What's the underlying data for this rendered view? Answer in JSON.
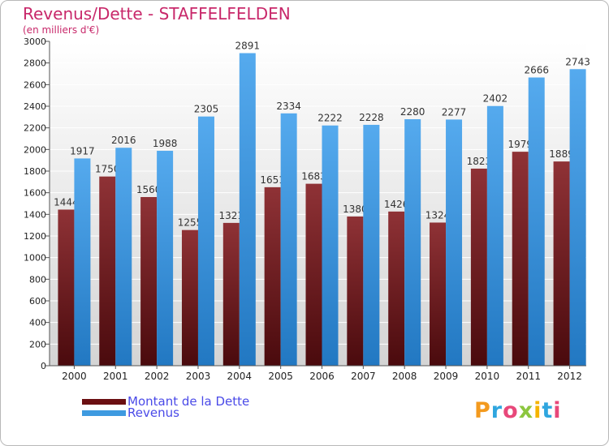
{
  "header": {
    "title": "Revenus/Dette - STAFFELFELDEN",
    "subtitle": "(en milliers d'€)"
  },
  "legend": [
    {
      "label": "Montant de la Dette",
      "color": "#6b0f12"
    },
    {
      "label": "Revenus",
      "color": "#3e9ae0"
    }
  ],
  "logo": {
    "text": "Proxiti"
  },
  "colors": {
    "title": "#c8286a",
    "dette_top": "#8f3236",
    "dette_bottom": "#4a0a0d",
    "revenus_top": "#55aaee",
    "revenus_bottom": "#2278c2",
    "plot_bg_top": "#ffffff",
    "plot_bg_bottom": "#d4d4d4"
  },
  "chart_data": {
    "type": "bar",
    "title": "Revenus/Dette - STAFFELFELDEN",
    "ylabel": "(en milliers d'€)",
    "xlabel": "",
    "categories": [
      "2000",
      "2001",
      "2002",
      "2003",
      "2004",
      "2005",
      "2006",
      "2007",
      "2008",
      "2009",
      "2010",
      "2011",
      "2012"
    ],
    "series": [
      {
        "name": "Montant de la Dette",
        "values": [
          1444,
          1750,
          1560,
          1255,
          1321,
          1651,
          1683,
          1380,
          1426,
          1324,
          1823,
          1979,
          1889
        ]
      },
      {
        "name": "Revenus",
        "values": [
          1917,
          2016,
          1988,
          2305,
          2891,
          2334,
          2222,
          2228,
          2280,
          2277,
          2402,
          2666,
          2743
        ]
      }
    ],
    "value_labels": [
      [
        "1444",
        "1750",
        "1560",
        "1255",
        "1321",
        "1651",
        "1683",
        "1380",
        "1426",
        "1324",
        "1823",
        "1979",
        "1889"
      ],
      [
        "1917",
        "2016",
        "1988",
        "2305",
        "2891",
        "2334",
        "2222",
        "2228",
        "2280",
        "2277",
        "2402",
        "2666",
        "2743"
      ]
    ],
    "ylim": [
      0,
      3000
    ],
    "yticks": [
      0,
      200,
      400,
      600,
      800,
      1000,
      1200,
      1400,
      1600,
      1800,
      2000,
      2200,
      2400,
      2600,
      2800,
      3000
    ],
    "grid": true,
    "legend_position": "bottom-left"
  }
}
